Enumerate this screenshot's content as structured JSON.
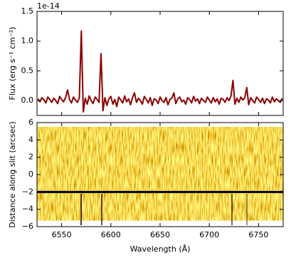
{
  "chart_data": [
    {
      "type": "line",
      "y_offset_label": "1e-14",
      "ylabel": "Flux (erg s⁻¹ cm⁻²)",
      "color": "#8b0000",
      "xlim": [
        6525,
        6775
      ],
      "xticks": [
        6550,
        6600,
        6650,
        6700,
        6750
      ],
      "show_xtick_labels": false,
      "ylim": [
        -0.25,
        1.5
      ],
      "yticks": [
        {
          "value": 0,
          "label": "0.0"
        },
        0.5,
        {
          "value": 1,
          "label": "1.0"
        },
        1.5
      ],
      "x": [
        6526,
        6528,
        6530,
        6532,
        6534,
        6536,
        6538,
        6540,
        6542,
        6544,
        6546,
        6548,
        6550,
        6552,
        6554,
        6556,
        6558,
        6560,
        6562,
        6564,
        6566,
        6568,
        6570,
        6572,
        6574,
        6576,
        6578,
        6580,
        6582,
        6584,
        6586,
        6588,
        6590,
        6592,
        6594,
        6596,
        6598,
        6600,
        6602,
        6604,
        6606,
        6608,
        6610,
        6612,
        6614,
        6616,
        6618,
        6620,
        6622,
        6624,
        6626,
        6628,
        6630,
        6632,
        6634,
        6636,
        6638,
        6640,
        6642,
        6644,
        6646,
        6648,
        6650,
        6652,
        6654,
        6656,
        6658,
        6660,
        6662,
        6664,
        6666,
        6668,
        6670,
        6672,
        6674,
        6676,
        6678,
        6680,
        6682,
        6684,
        6686,
        6688,
        6690,
        6692,
        6694,
        6696,
        6698,
        6700,
        6702,
        6704,
        6706,
        6708,
        6710,
        6712,
        6714,
        6716,
        6718,
        6720,
        6722,
        6724,
        6726,
        6728,
        6730,
        6732,
        6734,
        6736,
        6738,
        6740,
        6742,
        6744,
        6746,
        6748,
        6750,
        6752,
        6754,
        6756,
        6758,
        6760,
        6762,
        6764,
        6766,
        6768,
        6770,
        6772,
        6774
      ],
      "values": [
        0.03,
        -0.02,
        0.05,
        0.01,
        -0.04,
        0.06,
        0.02,
        -0.03,
        0.04,
        0.0,
        -0.05,
        0.07,
        0.02,
        -0.02,
        0.05,
        0.18,
        0.02,
        -0.04,
        0.06,
        0.01,
        -0.03,
        0.05,
        1.17,
        -0.19,
        0.04,
        -0.06,
        0.08,
        0.0,
        -0.05,
        0.06,
        0.02,
        -0.03,
        0.79,
        -0.17,
        0.05,
        -0.08,
        0.03,
        0.07,
        -0.06,
        0.02,
        -0.1,
        0.06,
        0.01,
        -0.04,
        0.08,
        -0.02,
        0.03,
        -0.07,
        0.05,
        0.13,
        -0.03,
        0.04,
        0.0,
        -0.06,
        0.07,
        0.02,
        -0.04,
        0.05,
        -0.08,
        0.03,
        0.01,
        -0.05,
        0.06,
        0.0,
        -0.03,
        0.05,
        -0.07,
        0.02,
        0.04,
        0.13,
        -0.05,
        0.03,
        0.06,
        -0.02,
        0.01,
        -0.06,
        0.05,
        0.02,
        -0.04,
        0.07,
        -0.01,
        0.03,
        -0.05,
        0.04,
        0.0,
        -0.03,
        0.06,
        0.01,
        -0.04,
        0.05,
        -0.02,
        0.03,
        -0.06,
        0.04,
        0.02,
        -0.03,
        0.05,
        0.0,
        0.08,
        0.34,
        -0.06,
        0.04,
        -0.03,
        0.06,
        0.01,
        0.05,
        0.22,
        -0.07,
        0.05,
        0.0,
        -0.04,
        0.06,
        0.02,
        -0.03,
        0.04,
        -0.05,
        0.03,
        0.01,
        -0.04,
        0.06,
        -0.02,
        0.03,
        0.0,
        -0.03,
        0.04
      ]
    },
    {
      "type": "image",
      "xlabel": "Wavelength (Å)",
      "ylabel": "Distance along slit (arcsec)",
      "xlim": [
        6525,
        6775
      ],
      "xticks": [
        6550,
        6600,
        6650,
        6700,
        6750
      ],
      "show_xtick_labels": true,
      "ylim": [
        -6,
        6
      ],
      "yticks": [
        {
          "value": -6,
          "label": "−6"
        },
        {
          "value": -4,
          "label": "−4"
        },
        {
          "value": -2,
          "label": "−2"
        },
        0,
        2,
        4,
        6
      ],
      "image_ylim": [
        -5.3,
        5.5
      ],
      "hline": -2
    }
  ]
}
